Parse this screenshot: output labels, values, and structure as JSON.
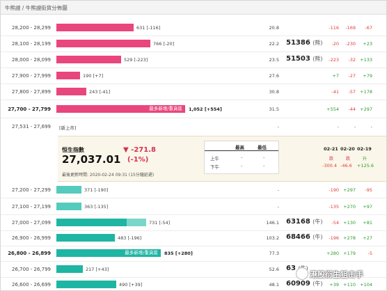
{
  "breadcrumb": "牛熊證 / 牛熊證街貨分佈圖",
  "rows_top": [
    {
      "range": "28,200 - 28,299",
      "qty": "631",
      "delta": "[-116]",
      "dist": "20.8",
      "code": "",
      "tag": "",
      "c1": "-116",
      "c2": "-169",
      "c3": "-67"
    },
    {
      "range": "28,100 - 28,199",
      "qty": "766",
      "delta": "[-20]",
      "dist": "22.2",
      "code": "51386",
      "tag": "(熊)",
      "c1": "-20",
      "c2": "-230",
      "c3": "+23"
    },
    {
      "range": "28,000 - 28,099",
      "qty": "529",
      "delta": "[-223]",
      "dist": "23.5",
      "code": "51503",
      "tag": "(熊)",
      "c1": "-223",
      "c2": "-32",
      "c3": "+133"
    },
    {
      "range": "27,900 - 27,999",
      "qty": "190",
      "delta": "[+7]",
      "dist": "27.6",
      "code": "",
      "tag": "",
      "c1": "+7",
      "c2": "-27",
      "c3": "+79"
    },
    {
      "range": "27,800 - 27,899",
      "qty": "243",
      "delta": "[-41]",
      "dist": "30.8",
      "code": "",
      "tag": "",
      "c1": "-41",
      "c2": "-57",
      "c3": "+178"
    },
    {
      "range": "27,700 - 27,799",
      "qty": "1,052",
      "delta": "[+554]",
      "dist": "31.5",
      "code": "",
      "tag": "",
      "c1": "+554",
      "c2": "-44",
      "c3": "+297",
      "note": "最多新增/重貨區"
    },
    {
      "range": "27,531 - 27,699",
      "qty": "",
      "delta": "[新上市]",
      "dist": "-",
      "code": "",
      "tag": "",
      "c1": "-",
      "c2": "-",
      "c3": "-"
    }
  ],
  "hsi": {
    "name": "恒生指數",
    "value": "27,037.01",
    "change": "▼ -271.8",
    "pct": "(-1%)",
    "updated": "最後更新時間: 2020-02-24 09:31 (15分鐘延遲)",
    "mini_headers": [
      "最高",
      "最低"
    ],
    "mini_rows": [
      {
        "label": "上午",
        "high": "-",
        "low": "-"
      },
      {
        "label": "下午",
        "high": "-",
        "low": "-"
      }
    ],
    "dates": [
      "02-21",
      "02-20",
      "02-19"
    ],
    "date_labels": [
      "跌",
      "跌",
      "升"
    ],
    "date_values": [
      "-300.4",
      "-46.6",
      "+125.6"
    ]
  },
  "rows_bottom": [
    {
      "range": "27,200 - 27,299",
      "qty": "371",
      "delta": "[-190]",
      "dist": "-",
      "code": "",
      "tag": "",
      "c1": "-190",
      "c2": "+297",
      "c3": "-95"
    },
    {
      "range": "27,100 - 27,199",
      "qty": "363",
      "delta": "[-135]",
      "dist": "-",
      "code": "",
      "tag": "",
      "c1": "-135",
      "c2": "+270",
      "c3": "+97"
    },
    {
      "range": "27,000 - 27,099",
      "qty": "731",
      "delta": "[-54]",
      "dist": "146.1",
      "code": "63168",
      "tag": "(牛)",
      "c1": "-54",
      "c2": "+130",
      "c3": "+81"
    },
    {
      "range": "26,900 - 26,999",
      "qty": "483",
      "delta": "[-196]",
      "dist": "103.2",
      "code": "68466",
      "tag": "(牛)",
      "c1": "-196",
      "c2": "+278",
      "c3": "+27"
    },
    {
      "range": "26,800 - 26,899",
      "qty": "835",
      "delta": "[+280]",
      "dist": "77.3",
      "code": "",
      "tag": "",
      "c1": "+280",
      "c2": "+179",
      "c3": "-5",
      "note": "最多新增/重貨區"
    },
    {
      "range": "26,700 - 26,799",
      "qty": "217",
      "delta": "[+43]",
      "dist": "52.6",
      "code": "63",
      "tag": "(牛)",
      "c1": "-",
      "c2": "-",
      "c3": "-"
    },
    {
      "range": "26,600 - 26,699",
      "qty": "490",
      "delta": "[+39]",
      "dist": "48.1",
      "code": "60909",
      "tag": "(牛)",
      "c1": "+39",
      "c2": "+110",
      "c3": "+104"
    }
  ],
  "watermark": "港股衍生狙击手",
  "colors": {
    "bear": "#e8467c",
    "bull": "#1fb5a3",
    "neg": "#e03a3a",
    "pos": "#2a9a2a"
  }
}
